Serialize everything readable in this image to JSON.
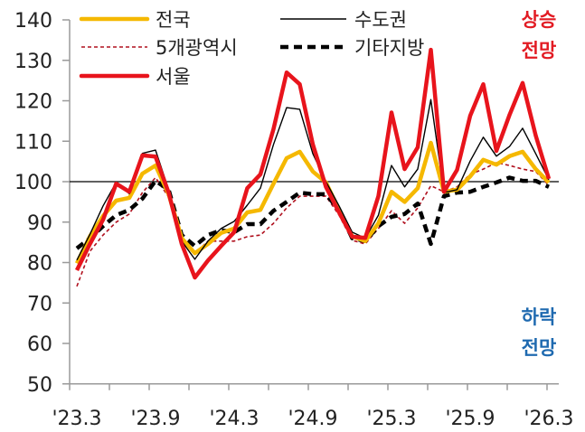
{
  "chart_data": {
    "type": "line",
    "title": "",
    "xlabel": "",
    "ylabel": "",
    "ylim": [
      50,
      140
    ],
    "yticks": [
      50,
      60,
      70,
      80,
      90,
      100,
      110,
      120,
      130,
      140
    ],
    "xtick_labels": [
      "'23.3",
      "'23.9",
      "'24.3",
      "'24.9",
      "'25.3",
      "'25.9",
      "'26.3"
    ],
    "x_months": [
      "23.3",
      "23.4",
      "23.5",
      "23.6",
      "23.7",
      "23.8",
      "23.9",
      "23.10",
      "23.11",
      "23.12",
      "24.1",
      "24.2",
      "24.3",
      "24.4",
      "24.5",
      "24.6",
      "24.7",
      "24.8",
      "24.9",
      "24.10",
      "24.11",
      "24.12",
      "25.1",
      "25.2",
      "25.3",
      "25.4",
      "25.5",
      "25.6",
      "25.7",
      "25.8",
      "25.9",
      "25.10",
      "25.11",
      "25.12",
      "26.1",
      "26.2",
      "26.3"
    ],
    "reference_line": 100,
    "grid": false,
    "legend_position": "top-left",
    "series": [
      {
        "name": "전국",
        "color": "#F5B800",
        "style": "solid",
        "width": 4.5,
        "values": [
          79.8,
          86.5,
          91.5,
          95.3,
          96,
          102,
          104,
          96.9,
          86,
          82.3,
          84.6,
          87.3,
          88.4,
          92.4,
          93,
          99.5,
          105.8,
          107.4,
          102.5,
          99.8,
          93,
          86.5,
          85.3,
          89.7,
          97.5,
          95,
          98.4,
          109.6,
          97.5,
          98,
          101.3,
          105.4,
          104.2,
          106.3,
          107.4,
          103.1,
          99.8
        ]
      },
      {
        "name": "수도권",
        "color": "#000000",
        "style": "solid",
        "width": 1.4,
        "values": [
          80.6,
          87,
          94,
          99.8,
          97,
          107,
          107.8,
          98,
          85.3,
          80.8,
          85.3,
          88.4,
          90.2,
          94.2,
          98.4,
          109.2,
          118.3,
          117.9,
          106.9,
          100,
          94,
          87.5,
          86,
          91.7,
          104,
          98.7,
          103.1,
          120.3,
          97.3,
          98,
          105.1,
          111,
          106.3,
          108.7,
          113.2,
          106.9,
          100.5
        ]
      },
      {
        "name": "5개광역시",
        "color": "#B0101E",
        "style": "dashed",
        "width": 1.6,
        "values": [
          74.1,
          82.8,
          86.8,
          90,
          92,
          97.3,
          101,
          96.2,
          85.7,
          82.3,
          85.3,
          85.3,
          85.3,
          86.4,
          86.8,
          89.7,
          93.5,
          96.4,
          96.4,
          96.4,
          91.7,
          85.5,
          84.6,
          88.4,
          92.8,
          89.7,
          93.5,
          99,
          97.5,
          98.7,
          101.8,
          103.1,
          104.7,
          104,
          103.1,
          102.5,
          99.1
        ]
      },
      {
        "name": "기타지방",
        "color": "#000000",
        "style": "bold-dashed",
        "width": 4.5,
        "values": [
          83.5,
          86,
          89,
          91.7,
          93,
          95.8,
          100.2,
          98,
          86.8,
          84.1,
          86.8,
          88,
          87.5,
          89.5,
          89.5,
          92.8,
          95,
          97.3,
          96.9,
          96.9,
          93,
          86,
          85.3,
          89,
          91.3,
          92,
          94.6,
          84.6,
          96.4,
          97.3,
          97.5,
          98.7,
          99.8,
          101,
          100.2,
          100.2,
          98.7
        ]
      },
      {
        "name": "서울",
        "color": "#E8141C",
        "style": "solid",
        "width": 4.5,
        "values": [
          78.1,
          84.6,
          90.6,
          99.5,
          97.5,
          106.5,
          106.2,
          97.3,
          84.6,
          76.3,
          80.5,
          84.1,
          87.5,
          98.4,
          101.8,
          113,
          127,
          124.1,
          109.2,
          98.7,
          92.4,
          86.4,
          86.1,
          96.4,
          117.1,
          103.1,
          108.5,
          132.6,
          97.5,
          102.9,
          116.3,
          124.1,
          107.6,
          116.5,
          124.4,
          111.4,
          100.7
        ]
      }
    ]
  },
  "legend": {
    "items": [
      {
        "label": "전국"
      },
      {
        "label": "5개광역시"
      },
      {
        "label": "서울"
      },
      {
        "label": "수도권"
      },
      {
        "label": "기타지방"
      }
    ]
  },
  "annotations": {
    "up": {
      "line1": "상승",
      "line2": "전망",
      "color": "#E21B23"
    },
    "down": {
      "line1": "하락",
      "line2": "전망",
      "color": "#1F6AB0"
    }
  }
}
